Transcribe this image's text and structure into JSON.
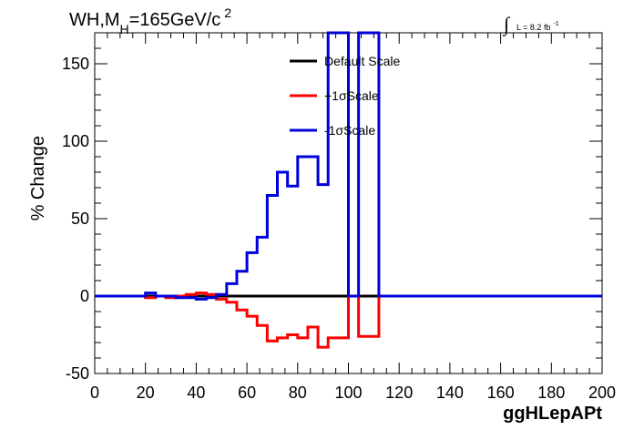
{
  "title": {
    "main": "WH,M",
    "sub": "H",
    "rest": "=165GeV/c",
    "sup": "2"
  },
  "luminosity": {
    "integral_symbol": "∫",
    "text": "L = 8.2 fb",
    "sup": "-1"
  },
  "chart_data": {
    "type": "line",
    "xlabel": "ggHLepAPt",
    "ylabel": "% Change",
    "xlim": [
      0,
      200
    ],
    "ylim": [
      -50,
      170
    ],
    "x_ticks": [
      0,
      20,
      40,
      60,
      80,
      100,
      120,
      140,
      160,
      180,
      200
    ],
    "y_ticks": [
      -50,
      0,
      50,
      100,
      150
    ],
    "grid": false,
    "legend_position": "top-center",
    "bin_edges": [
      0,
      4,
      8,
      12,
      16,
      20,
      24,
      28,
      32,
      36,
      40,
      44,
      48,
      52,
      56,
      60,
      64,
      68,
      72,
      76,
      80,
      84,
      88,
      92,
      96,
      100,
      104,
      108,
      112,
      116,
      120,
      124,
      128,
      132,
      136,
      140,
      144,
      148,
      152,
      156,
      160,
      164,
      168,
      172,
      176,
      180,
      184,
      188,
      192,
      196,
      200
    ],
    "series": [
      {
        "name": "Default Scale",
        "color": "#000000",
        "values": [
          0,
          0,
          0,
          0,
          0,
          0,
          0,
          0,
          0,
          0,
          0,
          0,
          0,
          0,
          0,
          0,
          0,
          0,
          0,
          0,
          0,
          0,
          0,
          0,
          0,
          0,
          0,
          0,
          0,
          0,
          0,
          0,
          0,
          0,
          0,
          0,
          0,
          0,
          0,
          0,
          0,
          0,
          0,
          0,
          0,
          0,
          0,
          0,
          0,
          0
        ]
      },
      {
        "name": "+1σScale",
        "color": "#ff0000",
        "values": [
          0,
          0,
          0,
          0,
          0,
          -1,
          0,
          -1,
          0,
          1,
          2,
          1,
          -2,
          -4,
          -9,
          -13,
          -19,
          -29,
          -27,
          -25,
          -27,
          -20,
          -33,
          -27,
          -27,
          0,
          -26,
          -26,
          0,
          0,
          0,
          0,
          0,
          0,
          0,
          0,
          0,
          0,
          0,
          0,
          0,
          0,
          0,
          0,
          0,
          0,
          0,
          0,
          0,
          0
        ]
      },
      {
        "name": "-1σScale",
        "color": "#0000dd",
        "values": [
          0,
          0,
          0,
          0,
          0,
          2,
          0,
          0,
          -1,
          -1,
          -2,
          -1,
          1,
          8,
          16,
          28,
          38,
          65,
          80,
          71,
          90,
          90,
          72,
          170,
          170,
          0,
          170,
          170,
          0,
          0,
          0,
          0,
          0,
          0,
          0,
          0,
          0,
          0,
          0,
          0,
          0,
          0,
          0,
          0,
          0,
          0,
          0,
          0,
          0,
          0
        ]
      }
    ]
  }
}
